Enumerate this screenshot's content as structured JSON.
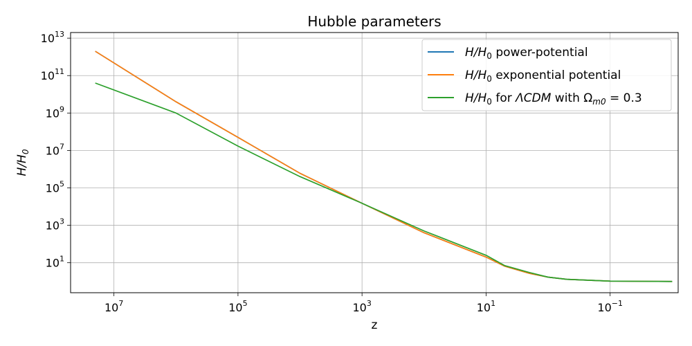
{
  "chart_data": {
    "type": "line",
    "title": "Hubble parameters",
    "xlabel": "z",
    "ylabel": "H/H",
    "ylabel_sub": "0",
    "x_scale": "log",
    "y_scale": "log",
    "x_inverted": true,
    "xlim": [
      50000000,
      0.008
    ],
    "ylim": [
      0.25,
      20000000000000
    ],
    "grid": true,
    "legend_position": "upper right",
    "x_ticks": [
      {
        "value": 10000000,
        "base": "10",
        "exp": "7"
      },
      {
        "value": 100000,
        "base": "10",
        "exp": "5"
      },
      {
        "value": 1000,
        "base": "10",
        "exp": "3"
      },
      {
        "value": 10,
        "base": "10",
        "exp": "1"
      },
      {
        "value": 0.1,
        "base": "10",
        "exp": "−1"
      }
    ],
    "y_ticks": [
      {
        "value": 10,
        "base": "10",
        "exp": "1"
      },
      {
        "value": 1000,
        "base": "10",
        "exp": "3"
      },
      {
        "value": 100000,
        "base": "10",
        "exp": "5"
      },
      {
        "value": 10000000,
        "base": "10",
        "exp": "7"
      },
      {
        "value": 1000000000,
        "base": "10",
        "exp": "9"
      },
      {
        "value": 100000000000,
        "base": "10",
        "exp": "11"
      },
      {
        "value": 10000000000000,
        "base": "10",
        "exp": "13"
      }
    ],
    "series": [
      {
        "name": "H/H0 power-potential",
        "legend_parts": [
          [
            "H/H",
            "i"
          ],
          [
            "0",
            "sub"
          ],
          [
            " power-potential",
            "n"
          ]
        ],
        "color": "#1f77b4",
        "x": [
          20000000,
          1000000,
          100000,
          10000,
          1000,
          100,
          10,
          5,
          2,
          1,
          0.5,
          0.1,
          0.01
        ],
        "y": [
          2000000000000,
          4000000000,
          50000000,
          600000,
          15000,
          400,
          20,
          6.5,
          2.7,
          1.7,
          1.3,
          1.04,
          1.0
        ]
      },
      {
        "name": "H/H0 exponential potential",
        "legend_parts": [
          [
            "H/H",
            "i"
          ],
          [
            "0",
            "sub"
          ],
          [
            " exponential potential",
            "n"
          ]
        ],
        "color": "#ff7f0e",
        "x": [
          20000000,
          1000000,
          100000,
          10000,
          1000,
          100,
          10,
          5,
          2,
          1,
          0.5,
          0.1,
          0.01
        ],
        "y": [
          2000000000000,
          4000000000,
          50000000,
          600000,
          15000,
          400,
          20,
          6.5,
          2.7,
          1.7,
          1.3,
          1.04,
          1.0
        ]
      },
      {
        "name": "H/H0 for ΛCDM with Ωm0 = 0.3",
        "legend_parts": [
          [
            "H/H",
            "i"
          ],
          [
            "0",
            "sub"
          ],
          [
            " for ",
            "n"
          ],
          [
            "ΛCDM",
            "i"
          ],
          [
            " with ",
            "n"
          ],
          [
            "Ω",
            "n"
          ],
          [
            "m0",
            "sub-i"
          ],
          [
            " = 0.3",
            "n"
          ]
        ],
        "color": "#2ca02c",
        "x": [
          20000000,
          1000000,
          100000,
          10000,
          1000,
          100,
          10,
          5,
          2,
          1,
          0.5,
          0.1,
          0.01
        ],
        "y": [
          40000000000,
          1000000000,
          17000000,
          400000,
          15000,
          500,
          25,
          7,
          3,
          1.7,
          1.3,
          1.04,
          1.0
        ]
      }
    ]
  }
}
